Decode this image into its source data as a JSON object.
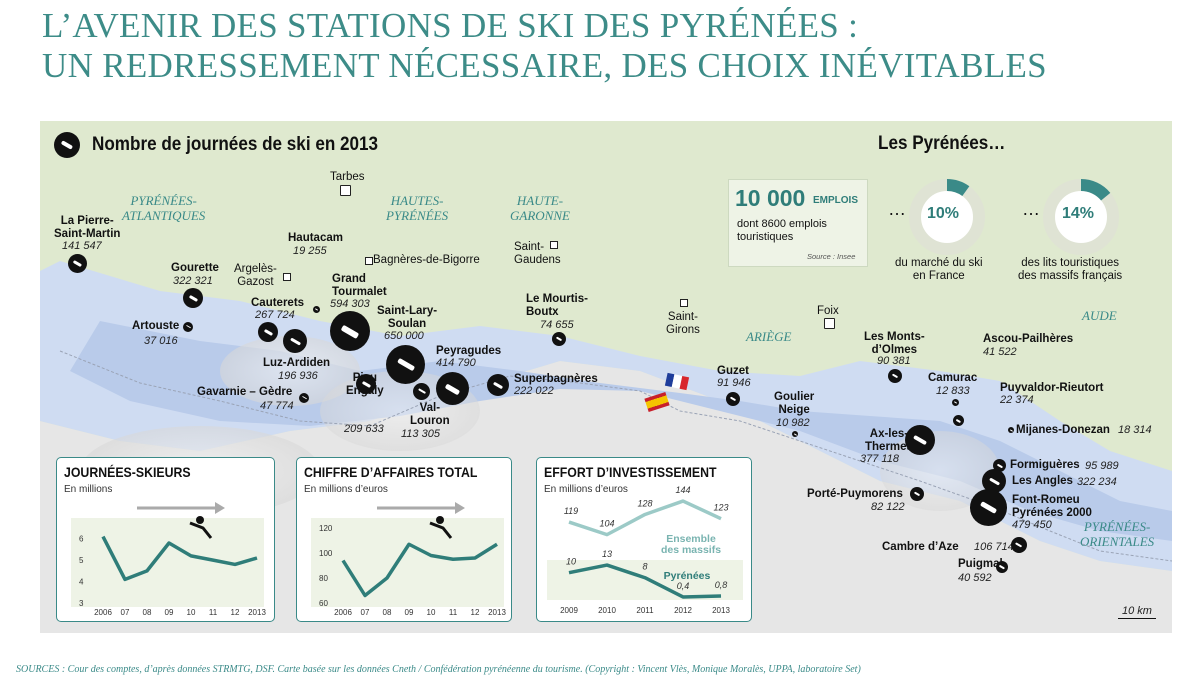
{
  "header": {
    "title_line1": "L’AVENIR DES STATIONS DE SKI DES PYRÉNÉES :",
    "title_line2": "UN REDRESSEMENT NÉCESSAIRE, DES CHOIX INÉVITABLES"
  },
  "map": {
    "heading": "Nombre de journées de ski en 2013",
    "scale": "10 km",
    "regions": {
      "pyr_atl": "PYRÉNÉES-\nATLANTIQUES",
      "hautes": "HAUTES-\nPYRÉNÉES",
      "haute_garonne": "HAUTE-\nGARONNE",
      "ariege": "ARIÈGE",
      "aude": "AUDE",
      "pyr_or": "PYRÉNÉES-\nORIENTALES"
    },
    "towns": {
      "tarbes": "Tarbes",
      "argeles": "Argelès-\nGazost",
      "bagneres": "Bagnères-de-Bigorre",
      "saint_gaudens": "Saint-\nGaudens",
      "saint_girons": "Saint-\nGirons",
      "foix": "Foix"
    },
    "stations": {
      "pierre_st_martin": {
        "name": "La Pierre-\nSaint-Martin",
        "value": "141 547"
      },
      "gourette": {
        "name": "Gourette",
        "value": "322 321"
      },
      "artouste": {
        "name": "Artouste",
        "value": "37 016"
      },
      "hautacam": {
        "name": "Hautacam",
        "value": "19 255"
      },
      "cauterets": {
        "name": "Cauterets",
        "value": "267 724"
      },
      "grand_tourmalet": {
        "name": "Grand\nTourmalet",
        "value": "594 303"
      },
      "luz_ardiden": {
        "name": "Luz-Ardiden",
        "value": "196 936"
      },
      "gavarnie": {
        "name": "Gavarnie – Gèdre",
        "value": "47 774"
      },
      "saint_lary": {
        "name": "Saint-Lary-\nSoulan",
        "value": "650 000"
      },
      "peyragudes": {
        "name": "Peyragudes",
        "value": "414 790"
      },
      "piau": {
        "name": "Piau\nEngaly",
        "value": "209 633"
      },
      "val_louron": {
        "name": "Val-\nLouron",
        "value": "113 305"
      },
      "superbagneres": {
        "name": "Superbagnères",
        "value": "222 022"
      },
      "mourtis": {
        "name": "Le Mourtis-\nBoutx",
        "value": "74 655"
      },
      "guzet": {
        "name": "Guzet",
        "value": "91 946"
      },
      "goulier": {
        "name": "Goulier\nNeige",
        "value": "10 982"
      },
      "monts_olmes": {
        "name": "Les Monts-\nd’Olmes",
        "value": "90 381"
      },
      "camurac": {
        "name": "Camurac",
        "value": "12 833"
      },
      "ascou": {
        "name": "Ascou-Pailhères",
        "value": "41 522"
      },
      "puyvaldor": {
        "name": "Puyvaldor-Rieutort",
        "value": "22 374"
      },
      "mijanes": {
        "name": "Mijanes-Donezan",
        "value": "18 314"
      },
      "ax": {
        "name": "Ax-les-\nThermes",
        "value": "377 118"
      },
      "formigueres": {
        "name": "Formiguères",
        "value": "95 989"
      },
      "les_angles": {
        "name": "Les Angles",
        "value": "322 234"
      },
      "font_romeu": {
        "name": "Font-Romeu\nPyrénées 2000",
        "value": "479 450"
      },
      "porte": {
        "name": "Porté-Puymorens",
        "value": "82 122"
      },
      "cambre": {
        "name": "Cambre d’Aze",
        "value": "106 714"
      },
      "puigmal": {
        "name": "Puigmal",
        "value": "40 592"
      }
    }
  },
  "pyrenees_info": {
    "title": "Les Pyrénées…",
    "jobs_number": "10 000",
    "jobs_unit": "EMPLOIS",
    "jobs_detail": "dont 8600 emplois\ntouristiques",
    "jobs_source": "Source : Insee",
    "ellipsis": "…",
    "stat1_value": "10%",
    "stat1_pct": 10,
    "stat1_label": "du marché du ski\nen France",
    "stat2_value": "14%",
    "stat2_pct": 14,
    "stat2_label": "des lits touristiques\ndes massifs français",
    "colors": {
      "accent": "#3a8a88",
      "ring": "#dfe3d4"
    }
  },
  "chart_data": [
    {
      "type": "line",
      "title": "JOURNÉES-SKIEURS",
      "ylabel": "En millions",
      "categories": [
        "2006",
        "07",
        "08",
        "09",
        "10",
        "11",
        "12",
        "2013"
      ],
      "values": [
        6.1,
        4.1,
        4.5,
        5.8,
        5.2,
        5.0,
        4.8,
        5.1
      ],
      "yticks": [
        "6",
        "5",
        "4",
        "3"
      ],
      "ylim": [
        3,
        6.5
      ]
    },
    {
      "type": "line",
      "title": "CHIFFRE D’AFFAIRES TOTAL",
      "ylabel": "En millions d’euros",
      "categories": [
        "2006",
        "07",
        "08",
        "09",
        "10",
        "11",
        "12",
        "2013"
      ],
      "values": [
        94,
        66,
        80,
        107,
        98,
        95,
        96,
        107
      ],
      "yticks": [
        "120",
        "100",
        "80",
        "60"
      ],
      "ylim": [
        60,
        120
      ]
    },
    {
      "type": "line",
      "title": "EFFORT D’INVESTISSEMENT",
      "ylabel": "En millions d’euros",
      "categories": [
        "2009",
        "2010",
        "2011",
        "2012",
        "2013"
      ],
      "series": [
        {
          "name": "Ensemble\ndes massifs",
          "values": [
            119,
            104,
            128,
            144,
            123
          ],
          "labels": [
            "119",
            "104",
            "128",
            "144",
            "123"
          ]
        },
        {
          "name": "Pyrénées",
          "values": [
            10,
            13,
            8,
            0.4,
            0.8
          ],
          "labels": [
            "10",
            "13",
            "8",
            "0,4",
            "0,8"
          ]
        }
      ]
    }
  ],
  "sources": "SOURCES : Cour des comptes, d’après données STRMTG, DSF. Carte basée sur les données Cneth / Confédération pyrénéenne du tourisme. (Copyright : Vincent Vlès, Monique Moralès, UPPA, laboratoire Set)"
}
